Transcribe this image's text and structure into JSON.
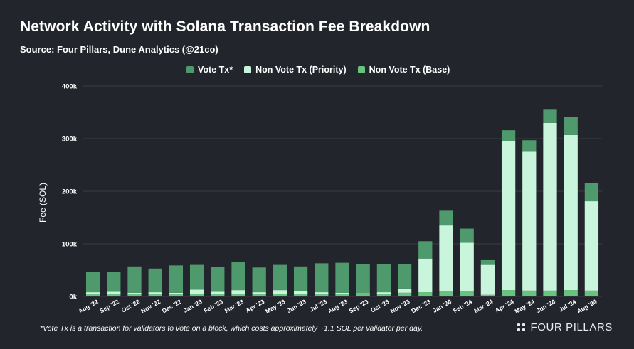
{
  "chart_data": {
    "type": "bar",
    "stacked": true,
    "title": "Network Activity with Solana Transaction Fee Breakdown",
    "subtitle": "Source: Four Pillars, Dune Analytics (@21co)",
    "ylabel": "Fee (SOL)",
    "xlabel": "",
    "ylim": [
      0,
      400000
    ],
    "yticks": [
      0,
      100000,
      200000,
      300000,
      400000
    ],
    "ytick_labels": [
      "0k",
      "100k",
      "200k",
      "300k",
      "400k"
    ],
    "grid": true,
    "legend_position": "top-center",
    "categories": [
      "Aug '22",
      "Sep '22",
      "Oct '22",
      "Nov '22",
      "Dec '22",
      "Jan '23",
      "Feb '23",
      "Mar '23",
      "Apr '23",
      "May '23",
      "Jun '23",
      "Jul '23",
      "Aug '23",
      "Sep '23",
      "Oct '23",
      "Nov '23",
      "Dec '23",
      "Jan '24",
      "Feb '24",
      "Mar '24",
      "Apr '24",
      "May '24",
      "Jun '24",
      "Jul '24",
      "Aug '24"
    ],
    "series": [
      {
        "name": "Non Vote Tx (Base)",
        "color": "#66c47e",
        "values": [
          5000,
          5000,
          4000,
          4000,
          4000,
          5000,
          5000,
          5000,
          4000,
          5000,
          5000,
          4000,
          4000,
          4000,
          5000,
          7000,
          8000,
          10000,
          10000,
          3000,
          12000,
          11000,
          11000,
          12000,
          11000
        ]
      },
      {
        "name": "Non Vote Tx (Priority)",
        "color": "#c9f5dc",
        "values": [
          3000,
          4000,
          3000,
          4000,
          3000,
          8000,
          4000,
          7000,
          4000,
          7000,
          5000,
          4000,
          3000,
          2000,
          3000,
          8000,
          64000,
          125000,
          92000,
          57000,
          283000,
          264000,
          319000,
          295000,
          170000
        ]
      },
      {
        "name": "Vote Tx*",
        "color": "#4f9a6d",
        "values": [
          38000,
          37000,
          50000,
          45000,
          52000,
          47000,
          47000,
          53000,
          47000,
          48000,
          47000,
          55000,
          57000,
          55000,
          54000,
          46000,
          33000,
          28000,
          27000,
          9000,
          21000,
          22000,
          25000,
          34000,
          34000
        ]
      }
    ]
  },
  "legend": [
    {
      "label": "Vote Tx*",
      "color": "#4f9a6d"
    },
    {
      "label": "Non Vote Tx (Priority)",
      "color": "#c9f5dc"
    },
    {
      "label": "Non Vote Tx (Base)",
      "color": "#66c47e"
    }
  ],
  "footnote": "*Vote Tx is a transaction for validators to vote on a block, which costs approximately ~1.1 SOL per validator per day.",
  "brand": "FOUR PILLARS",
  "colors": {
    "background": "#22252b",
    "gridline": "#3a3e46"
  }
}
